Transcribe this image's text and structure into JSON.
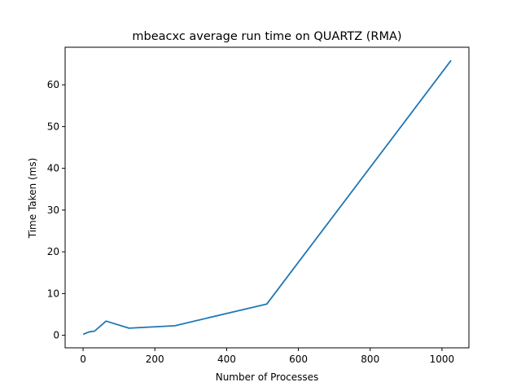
{
  "chart_data": {
    "type": "line",
    "title": "mbeacxc average run time on QUARTZ (RMA)",
    "xlabel": "Number of Processes",
    "ylabel": "Time Taken (ms)",
    "xlim": [
      -50,
      1075
    ],
    "ylim": [
      -3,
      69
    ],
    "xticks": [
      0,
      200,
      400,
      600,
      800,
      1000
    ],
    "yticks": [
      0,
      10,
      20,
      30,
      40,
      50,
      60
    ],
    "grid": false,
    "series": [
      {
        "color": "#1f77b4",
        "x": [
          2,
          16,
          32,
          64,
          128,
          256,
          512,
          1024
        ],
        "y": [
          0.3,
          0.8,
          1.0,
          3.4,
          1.7,
          2.3,
          7.5,
          65.7
        ]
      }
    ]
  }
}
